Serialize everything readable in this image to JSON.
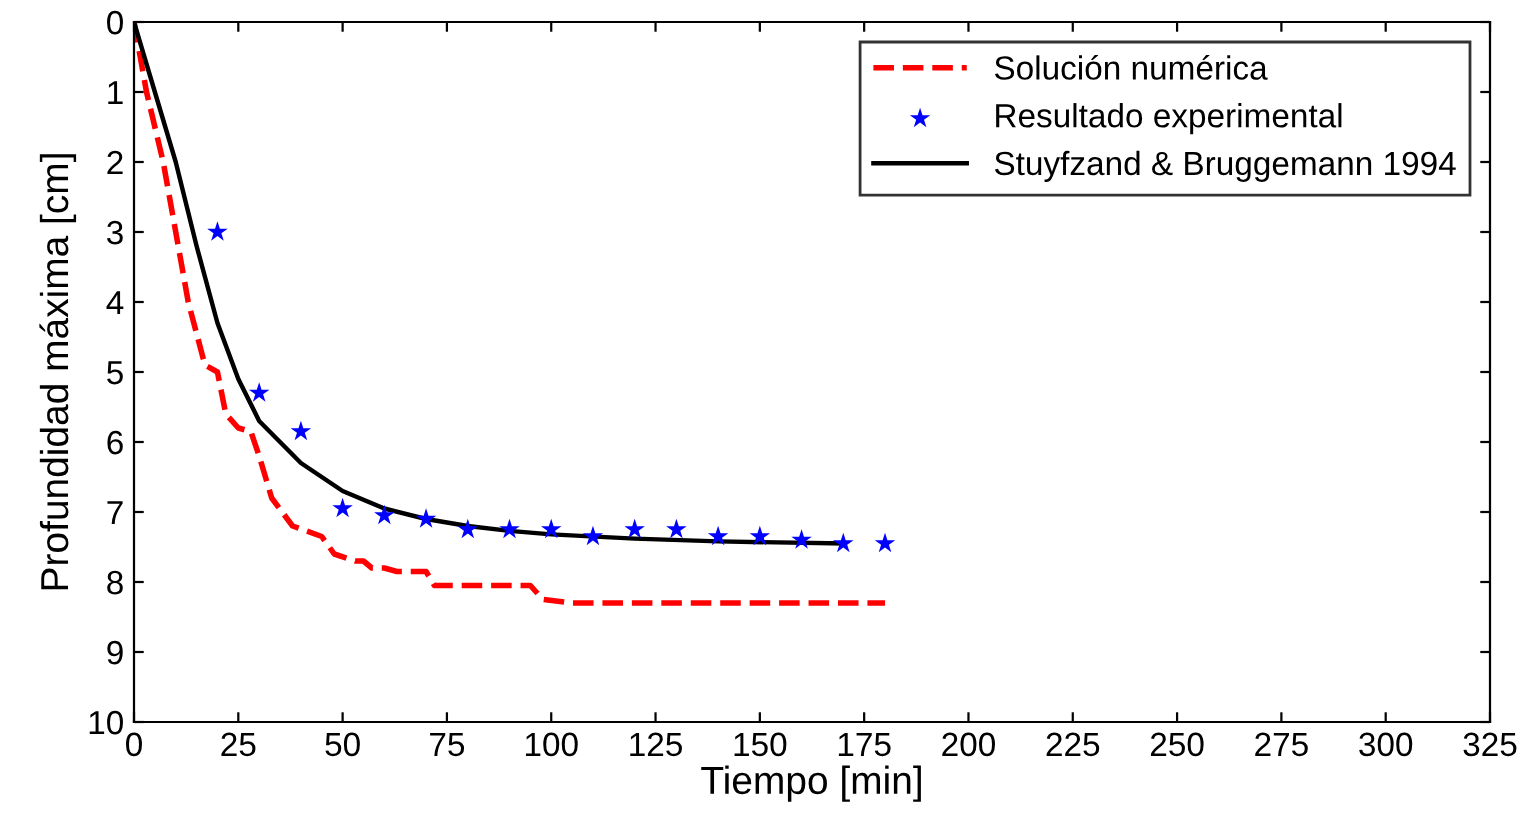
{
  "chart_data": {
    "type": "line",
    "xlabel": "Tiempo [min]",
    "ylabel": "Profundidad máxima [cm]",
    "xlim": [
      0,
      325
    ],
    "xticks": [
      0,
      25,
      50,
      75,
      100,
      125,
      150,
      175,
      200,
      225,
      250,
      275,
      300,
      325
    ],
    "ylim": [
      10,
      0
    ],
    "yticks": [
      0,
      1,
      2,
      3,
      4,
      5,
      6,
      7,
      8,
      9,
      10
    ],
    "grid": false,
    "legend": "top right",
    "series": [
      {
        "name": "Solución numérica",
        "color": "#ff0000",
        "line_style": "dashed",
        "marker": "none",
        "x": [
          0,
          3,
          7,
          10,
          13,
          17,
          20,
          22,
          25,
          28,
          30,
          33,
          38,
          45,
          48,
          53,
          55,
          57,
          60,
          63,
          70,
          72,
          95,
          98,
          105,
          180
        ],
        "values": [
          0,
          1,
          2,
          3,
          4,
          4.9,
          5.0,
          5.6,
          5.8,
          5.85,
          6.2,
          6.8,
          7.2,
          7.35,
          7.6,
          7.7,
          7.7,
          7.8,
          7.8,
          7.85,
          7.85,
          8.05,
          8.05,
          8.25,
          8.3,
          8.3
        ]
      },
      {
        "name": "Resultado experimental",
        "type": "scatter",
        "color": "#0000ff",
        "marker": "star",
        "x": [
          20,
          30,
          40,
          50,
          60,
          70,
          80,
          90,
          100,
          110,
          120,
          130,
          140,
          150,
          160,
          170,
          180
        ],
        "values": [
          3.0,
          5.3,
          5.85,
          6.95,
          7.05,
          7.1,
          7.25,
          7.25,
          7.25,
          7.35,
          7.25,
          7.25,
          7.35,
          7.35,
          7.4,
          7.45,
          7.45
        ]
      },
      {
        "name": "Stuyfzand & Bruggemann 1994",
        "color": "#000000",
        "line_style": "solid",
        "marker": "none",
        "x": [
          0,
          5,
          10,
          15,
          20,
          25,
          30,
          40,
          50,
          60,
          70,
          80,
          90,
          100,
          120,
          140,
          170
        ],
        "values": [
          0,
          1.0,
          2.0,
          3.2,
          4.3,
          5.1,
          5.7,
          6.3,
          6.7,
          6.95,
          7.1,
          7.2,
          7.27,
          7.32,
          7.38,
          7.42,
          7.45
        ]
      }
    ]
  }
}
